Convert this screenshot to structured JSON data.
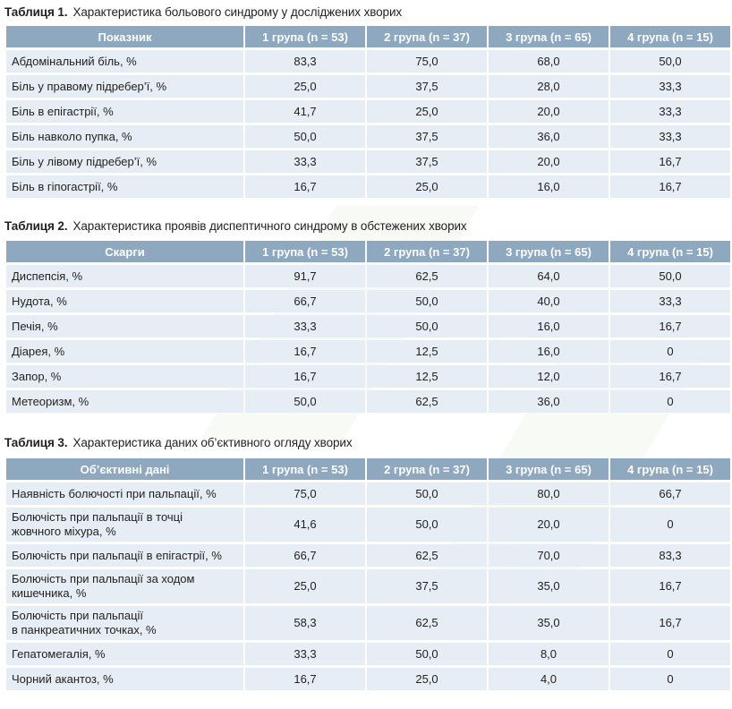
{
  "tables": [
    {
      "label": "Таблиця 1.",
      "title": "Характеристика больового синдрому у досліджених хворих",
      "headers": [
        "Показник",
        "1 група (n = 53)",
        "2 група (n = 37)",
        "3 група (n = 65)",
        "4 група (n = 15)"
      ],
      "rows": [
        [
          "Абдомінальний біль, %",
          "83,3",
          "75,0",
          "68,0",
          "50,0"
        ],
        [
          "Біль у правому підребер’ї, %",
          "25,0",
          "37,5",
          "28,0",
          "33,3"
        ],
        [
          "Біль в епігастрії, %",
          "41,7",
          "25,0",
          "20,0",
          "33,3"
        ],
        [
          "Біль навколо пупка, %",
          "50,0",
          "37,5",
          "36,0",
          "33,3"
        ],
        [
          "Біль у лівому підребер’ї, %",
          "33,3",
          "37,5",
          "20,0",
          "16,7"
        ],
        [
          "Біль в гіпогастрії, %",
          "16,7",
          "25,0",
          "16,0",
          "16,7"
        ]
      ]
    },
    {
      "label": "Таблиця 2.",
      "title": "Характеристика проявів диспептичного синдрому в обстежених хворих",
      "headers": [
        "Скарги",
        "1 група (n = 53)",
        "2 група (n = 37)",
        "3 група (n = 65)",
        "4 група (n = 15)"
      ],
      "rows": [
        [
          "Диспепсія, %",
          "91,7",
          "62,5",
          "64,0",
          "50,0"
        ],
        [
          "Нудота, %",
          "66,7",
          "50,0",
          "40,0",
          "33,3"
        ],
        [
          "Печія, %",
          "33,3",
          "50,0",
          "16,0",
          "16,7"
        ],
        [
          "Діарея, %",
          "16,7",
          "12,5",
          "16,0",
          "0"
        ],
        [
          "Запор, %",
          "16,7",
          "12,5",
          "12,0",
          "16,7"
        ],
        [
          "Метеоризм, %",
          "50,0",
          "62,5",
          "36,0",
          "0"
        ]
      ]
    },
    {
      "label": "Таблиця 3.",
      "title": "Характеристика даних об’єктивного огляду хворих",
      "headers": [
        "Об’єктивні дані",
        "1 група (n = 53)",
        "2 група (n = 37)",
        "3 група (n = 65)",
        "4 група (n = 15)"
      ],
      "rows": [
        [
          "Наявність болючості при пальпації, %",
          "75,0",
          "50,0",
          "80,0",
          "66,7"
        ],
        [
          "Болючість при пальпації в точці\nжовчного міхура, %",
          "41,6",
          "50,0",
          "20,0",
          "0"
        ],
        [
          "Болючість при пальпації в епігастрії, %",
          "66,7",
          "62,5",
          "70,0",
          "83,3"
        ],
        [
          "Болючість при пальпації за ходом\nкишечника, %",
          "25,0",
          "37,5",
          "35,0",
          "16,7"
        ],
        [
          "Болючість при пальпації\nв панкреатичних точках, %",
          "58,3",
          "62,5",
          "35,0",
          "16,7"
        ],
        [
          "Гепатомегалія, %",
          "33,3",
          "50,0",
          "8,0",
          "0"
        ],
        [
          "Чорний акантоз, %",
          "16,7",
          "25,0",
          "4,0",
          "0"
        ]
      ]
    }
  ]
}
